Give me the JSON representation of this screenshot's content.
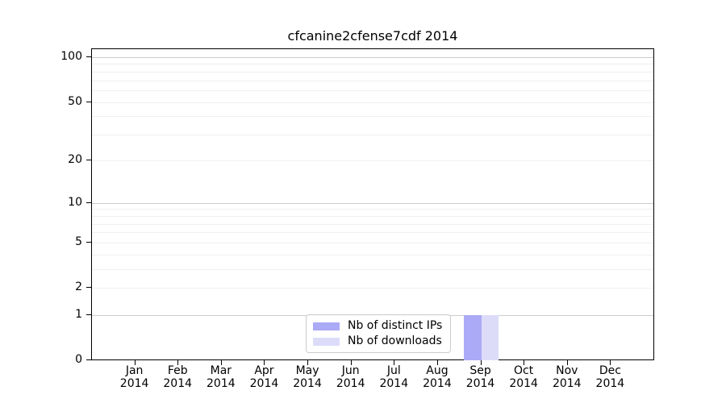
{
  "chart_data": {
    "type": "bar",
    "title": "cfcanine2cfense7cdf 2014",
    "categories": [
      "Jan",
      "Feb",
      "Mar",
      "Apr",
      "May",
      "Jun",
      "Jul",
      "Aug",
      "Sep",
      "Oct",
      "Nov",
      "Dec"
    ],
    "x_year": "2014",
    "series": [
      {
        "name": "Nb of distinct IPs",
        "color": "#abaaf6",
        "values": [
          0,
          0,
          0,
          0,
          0,
          0,
          0,
          0,
          1,
          0,
          0,
          0
        ]
      },
      {
        "name": "Nb of downloads",
        "color": "#dcdcf9",
        "values": [
          0,
          0,
          0,
          0,
          0,
          0,
          0,
          0,
          1,
          0,
          0,
          0
        ]
      }
    ],
    "yscale": "log1p",
    "ylim": [
      0,
      113
    ],
    "yticks": [
      0,
      1,
      2,
      5,
      10,
      20,
      50,
      100
    ],
    "grid": {
      "major": [
        1,
        10,
        100
      ],
      "minor": [
        2,
        3,
        4,
        5,
        6,
        7,
        8,
        9,
        20,
        30,
        40,
        50,
        60,
        70,
        80,
        90
      ],
      "major_color": "#cccccc",
      "minor_color": "#f0f0f0"
    },
    "legend_position": "lower-center"
  }
}
